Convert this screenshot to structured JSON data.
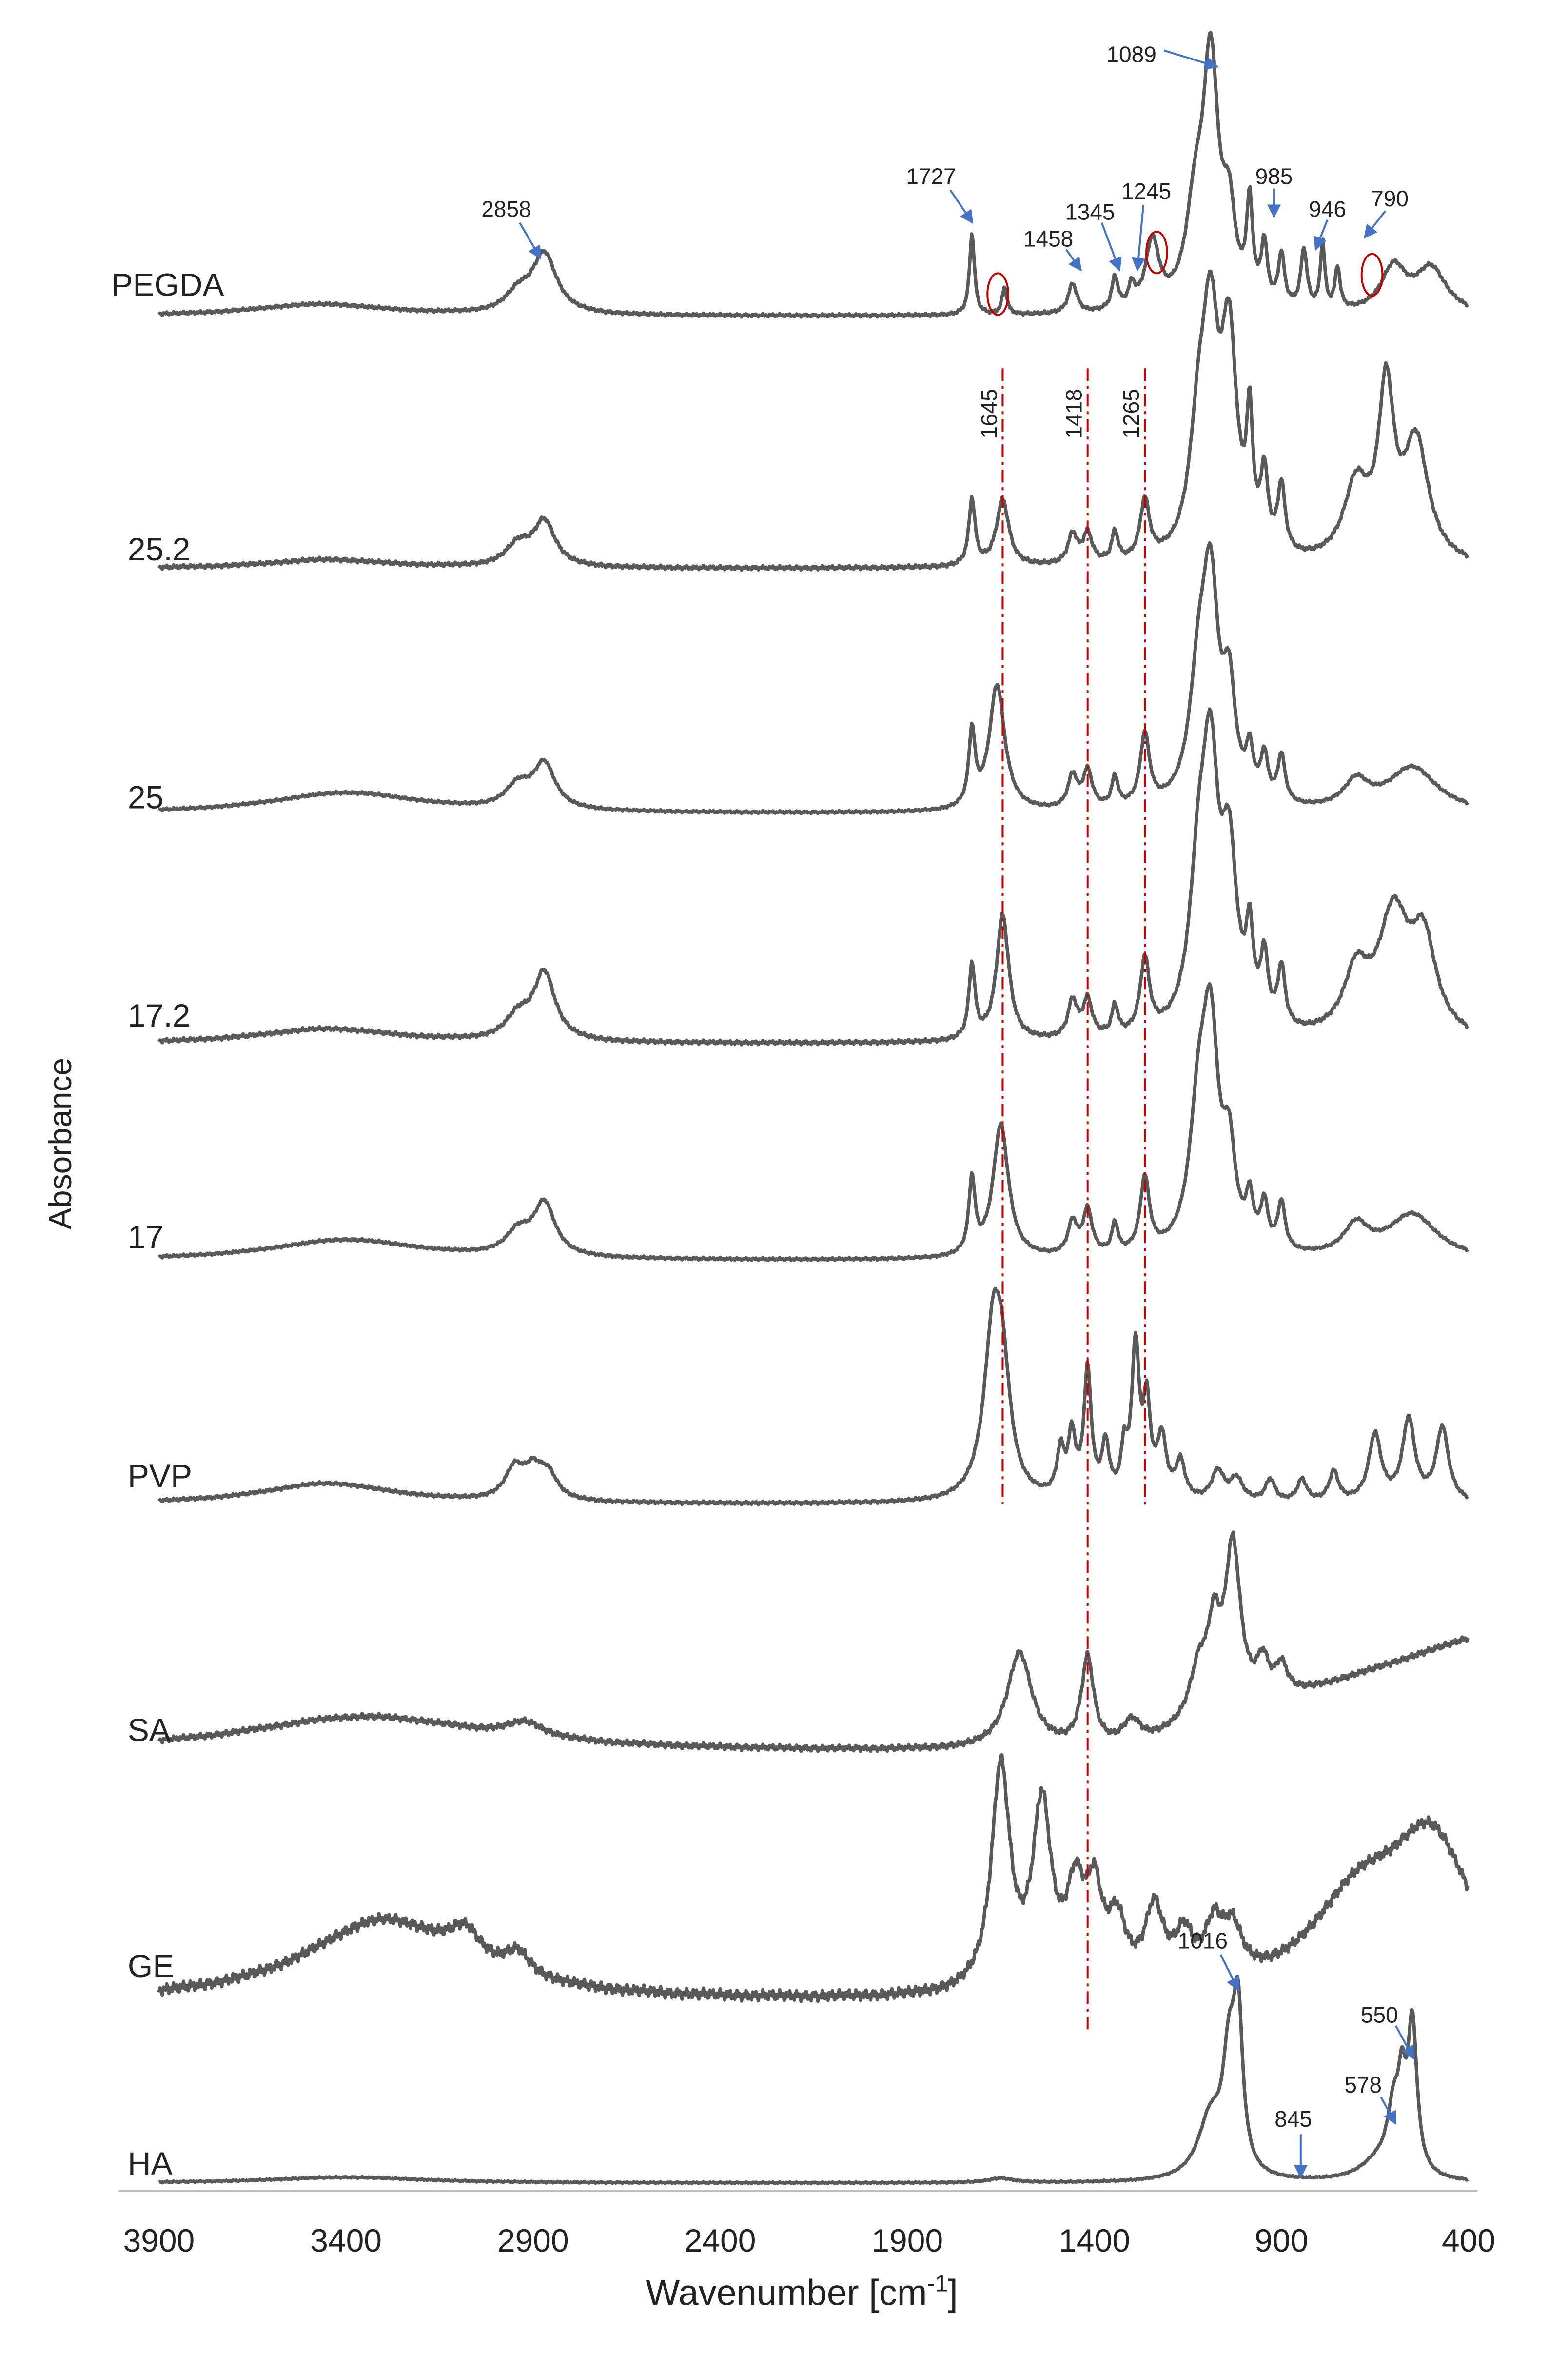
{
  "chart_data": {
    "type": "line",
    "title": "",
    "xlabel": "Wavenumber [cm",
    "xlabel_sup": "-1",
    "xlabel_end": "]",
    "ylabel": "Absorbance",
    "xlim": [
      3950,
      380
    ],
    "x_reversed": true,
    "xticks": [
      "3900",
      "3400",
      "2900",
      "2400",
      "1900",
      "1400",
      "900",
      "400"
    ],
    "series": [
      {
        "name": "PEGDA",
        "color": "#595959"
      },
      {
        "name": "25.2",
        "color": "#595959"
      },
      {
        "name": "25",
        "color": "#595959"
      },
      {
        "name": "17.2",
        "color": "#595959"
      },
      {
        "name": "17",
        "color": "#595959"
      },
      {
        "name": "PVP",
        "color": "#595959"
      },
      {
        "name": "SA",
        "color": "#595959"
      },
      {
        "name": "GE",
        "color": "#595959"
      },
      {
        "name": "HA",
        "color": "#595959"
      }
    ],
    "peak_annotations": [
      {
        "label": "2858",
        "x": 2858,
        "series": "PEGDA"
      },
      {
        "label": "1727",
        "x": 1727,
        "series": "PEGDA"
      },
      {
        "label": "1458",
        "x": 1458,
        "series": "PEGDA"
      },
      {
        "label": "1345",
        "x": 1345,
        "series": "PEGDA"
      },
      {
        "label": "1245",
        "x": 1245,
        "series": "PEGDA"
      },
      {
        "label": "1089",
        "x": 1089,
        "series": "PEGDA"
      },
      {
        "label": "985",
        "x": 985,
        "series": "PEGDA"
      },
      {
        "label": "946",
        "x": 946,
        "series": "PEGDA"
      },
      {
        "label": "790",
        "x": 790,
        "series": "PEGDA"
      },
      {
        "label": "1016",
        "x": 1016,
        "series": "HA"
      },
      {
        "label": "845",
        "x": 845,
        "series": "HA"
      },
      {
        "label": "578",
        "x": 578,
        "series": "HA"
      },
      {
        "label": "550",
        "x": 550,
        "series": "HA"
      }
    ],
    "reference_lines": [
      {
        "label": "1645",
        "x": 1645,
        "color": "#c00000"
      },
      {
        "label": "1418",
        "x": 1418,
        "color": "#c00000"
      },
      {
        "label": "1265",
        "x": 1265,
        "color": "#c00000"
      }
    ],
    "highlight_circles": [
      {
        "x": 1640,
        "series": "PEGDA"
      },
      {
        "x": 1190,
        "series": "PEGDA"
      },
      {
        "x": 760,
        "series": "PEGDA"
      }
    ],
    "annotation_color": "#4472c4",
    "grid": false,
    "legend": "none"
  }
}
